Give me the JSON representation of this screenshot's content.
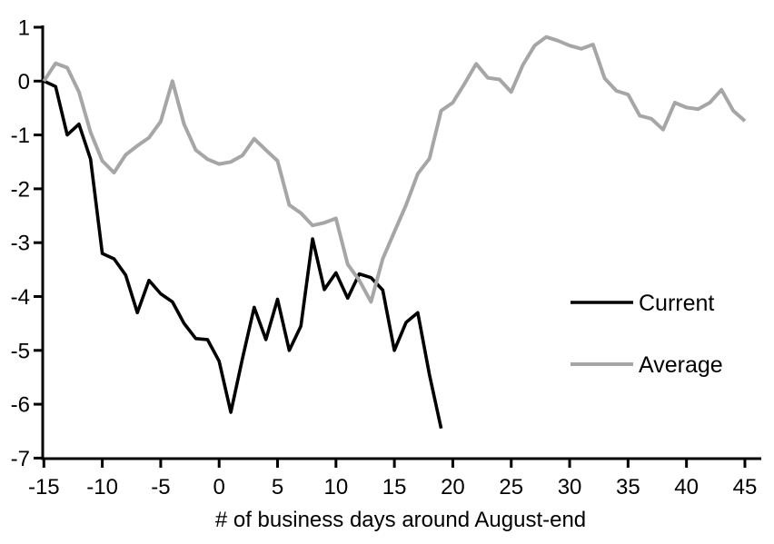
{
  "chart_data": {
    "type": "line",
    "title": "",
    "xlabel": "# of business days around August-end",
    "ylabel": "",
    "xlim": [
      -15,
      45
    ],
    "ylim": [
      -7,
      1
    ],
    "x_ticks": [
      -15,
      -10,
      -5,
      0,
      5,
      10,
      15,
      20,
      25,
      30,
      35,
      40,
      45
    ],
    "y_ticks": [
      1,
      0,
      -1,
      -2,
      -3,
      -4,
      -5,
      -6,
      -7
    ],
    "grid": false,
    "legend_position": "middle-right",
    "axis_color": "#000000",
    "background_color": "#ffffff",
    "series": [
      {
        "name": "Current",
        "color": "#000000",
        "stroke_width": 3.6,
        "x_start": -15,
        "x_step": 1,
        "values": [
          0,
          -0.1,
          -1.0,
          -0.8,
          -1.45,
          -3.2,
          -3.3,
          -3.6,
          -4.3,
          -3.7,
          -3.95,
          -4.1,
          -4.5,
          -4.78,
          -4.8,
          -5.2,
          -6.15,
          -5.15,
          -4.2,
          -4.8,
          -4.05,
          -5.0,
          -4.55,
          -2.93,
          -3.87,
          -3.56,
          -4.03,
          -3.58,
          -3.65,
          -3.88,
          -5.0,
          -4.48,
          -4.3,
          -5.45,
          -6.45
        ]
      },
      {
        "name": "Average",
        "color": "#a6a6a6",
        "stroke_width": 4,
        "x_start": -15,
        "x_step": 1,
        "values": [
          0,
          0.33,
          0.25,
          -0.2,
          -0.95,
          -1.48,
          -1.7,
          -1.37,
          -1.2,
          -1.05,
          -0.75,
          0,
          -0.8,
          -1.28,
          -1.45,
          -1.54,
          -1.5,
          -1.38,
          -1.07,
          -1.28,
          -1.48,
          -2.3,
          -2.45,
          -2.68,
          -2.63,
          -2.55,
          -3.4,
          -3.7,
          -4.1,
          -3.3,
          -2.8,
          -2.3,
          -1.72,
          -1.44,
          -0.55,
          -0.4,
          -0.05,
          0.32,
          0.06,
          0.03,
          -0.2,
          0.3,
          0.66,
          0.82,
          0.75,
          0.66,
          0.6,
          0.68,
          0.05,
          -0.18,
          -0.25,
          -0.64,
          -0.7,
          -0.9,
          -0.4,
          -0.49,
          -0.52,
          -0.4,
          -0.16,
          -0.55,
          -0.74
        ]
      }
    ]
  }
}
